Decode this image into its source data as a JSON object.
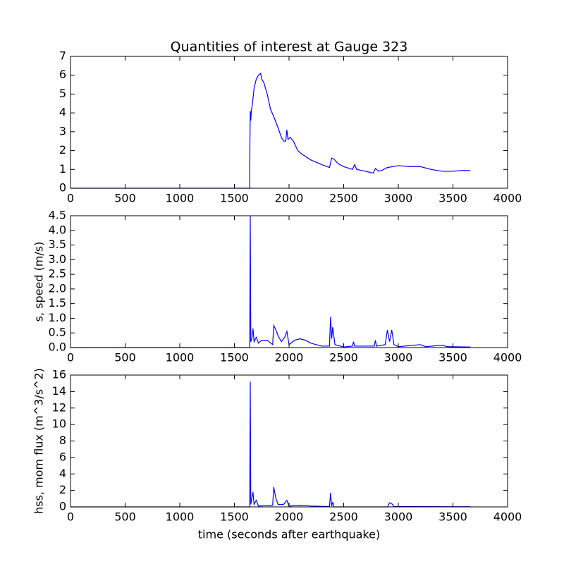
{
  "chart_data": [
    {
      "type": "line",
      "title": "Quantities of interest at Gauge 323",
      "xlim": [
        0,
        4000
      ],
      "xticks": [
        0,
        500,
        1000,
        1500,
        2000,
        2500,
        3000,
        3500,
        4000
      ],
      "ylim": [
        0,
        7
      ],
      "yticks": [
        0,
        1,
        2,
        3,
        4,
        5,
        6,
        7
      ],
      "x": [
        0,
        1640,
        1642,
        1645,
        1650,
        1655,
        1665,
        1680,
        1700,
        1720,
        1740,
        1750,
        1770,
        1800,
        1830,
        1860,
        1900,
        1930,
        1950,
        1970,
        1980,
        1990,
        2010,
        2040,
        2080,
        2120,
        2200,
        2300,
        2370,
        2390,
        2410,
        2450,
        2500,
        2580,
        2600,
        2620,
        2700,
        2770,
        2790,
        2820,
        2850,
        2900,
        3000,
        3100,
        3200,
        3300,
        3400,
        3500,
        3600,
        3660
      ],
      "series": [
        {
          "color": "#0000ff",
          "values": [
            0,
            0,
            2.5,
            4.1,
            3.6,
            4.1,
            4.5,
            5.3,
            5.8,
            6.0,
            6.1,
            5.8,
            5.6,
            5.0,
            4.2,
            3.8,
            3.2,
            2.7,
            2.5,
            2.5,
            3.1,
            2.6,
            2.7,
            2.5,
            2.0,
            1.8,
            1.5,
            1.25,
            1.1,
            1.6,
            1.55,
            1.3,
            1.15,
            1.0,
            1.25,
            1.0,
            0.9,
            0.8,
            1.05,
            0.9,
            0.95,
            1.1,
            1.2,
            1.15,
            1.15,
            1.0,
            0.9,
            0.9,
            0.95,
            0.93
          ]
        }
      ]
    },
    {
      "type": "line",
      "ylabel": "s, speed (m/s)",
      "xlim": [
        0,
        4000
      ],
      "xticks": [
        0,
        500,
        1000,
        1500,
        2000,
        2500,
        3000,
        3500,
        4000
      ],
      "ylim": [
        0,
        4.5
      ],
      "yticks": [
        {
          "value": 0,
          "label": "0.0"
        },
        0.5,
        {
          "value": 1,
          "label": "1.0"
        },
        1.5,
        {
          "value": 2,
          "label": "2.0"
        },
        2.5,
        {
          "value": 3,
          "label": "3.0"
        },
        3.5,
        {
          "value": 4,
          "label": "4.0"
        },
        4.5
      ],
      "x": [
        0,
        1640,
        1645,
        1650,
        1660,
        1670,
        1680,
        1700,
        1720,
        1750,
        1800,
        1850,
        1860,
        1880,
        1900,
        1930,
        1960,
        1980,
        2000,
        2050,
        2100,
        2150,
        2200,
        2300,
        2370,
        2380,
        2390,
        2400,
        2420,
        2500,
        2580,
        2590,
        2600,
        2700,
        2780,
        2790,
        2800,
        2880,
        2900,
        2920,
        2940,
        2960,
        3000,
        3200,
        3250,
        3400,
        3450,
        3660
      ],
      "series": [
        {
          "color": "#0000ff",
          "values": [
            0,
            0,
            4.5,
            0.2,
            0.3,
            0.65,
            0.2,
            0.35,
            0.15,
            0.25,
            0.25,
            0.1,
            0.75,
            0.6,
            0.4,
            0.2,
            0.35,
            0.55,
            0.1,
            0.25,
            0.3,
            0.25,
            0.15,
            0.05,
            0.05,
            1.05,
            0.3,
            0.7,
            0.1,
            0.02,
            0.05,
            0.2,
            0.05,
            0.05,
            0.05,
            0.25,
            0.05,
            0.1,
            0.6,
            0.2,
            0.6,
            0.1,
            0.03,
            0.1,
            0.03,
            0.08,
            0.03,
            0.02
          ]
        }
      ]
    },
    {
      "type": "line",
      "ylabel": "hss, mom flux (m^3/s^2)",
      "xlabel": "time (seconds after earthquake)",
      "xlim": [
        0,
        4000
      ],
      "xticks": [
        0,
        500,
        1000,
        1500,
        2000,
        2500,
        3000,
        3500,
        4000
      ],
      "ylim": [
        0,
        16
      ],
      "yticks": [
        0,
        2,
        4,
        6,
        8,
        10,
        12,
        14,
        16
      ],
      "x": [
        0,
        1640,
        1645,
        1650,
        1670,
        1680,
        1700,
        1720,
        1850,
        1860,
        1880,
        1900,
        1950,
        1980,
        2000,
        2100,
        2200,
        2370,
        2380,
        2390,
        2400,
        2410,
        2900,
        2920,
        2940,
        2960,
        3660
      ],
      "series": [
        {
          "color": "#0000ff",
          "values": [
            0,
            0,
            15.2,
            0.3,
            1.8,
            0.3,
            0.8,
            0.1,
            0.2,
            2.4,
            1.0,
            0.3,
            0.3,
            0.8,
            0.1,
            0.2,
            0.1,
            0.05,
            1.7,
            0.1,
            0.6,
            0,
            0,
            0.5,
            0.4,
            0.05,
            0.02
          ]
        }
      ]
    }
  ]
}
